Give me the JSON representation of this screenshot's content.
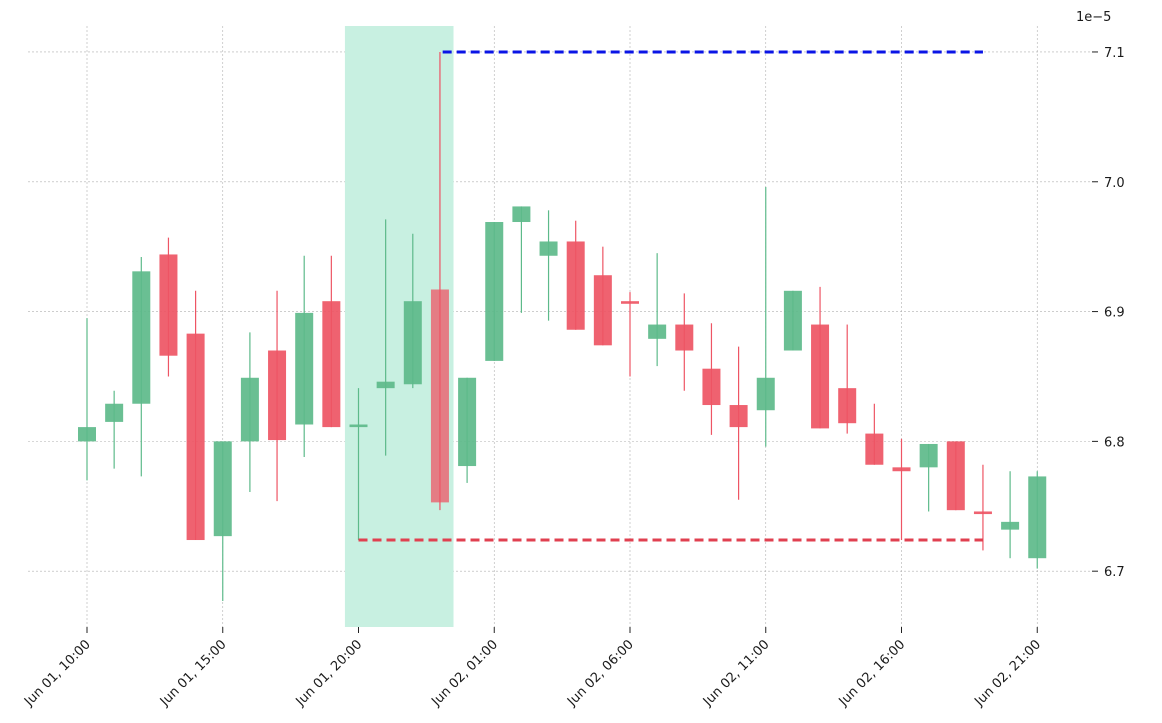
{
  "chart_data": {
    "type": "candlestick",
    "title": "",
    "xlabel": "",
    "ylabel": "",
    "y_scale_label": "1e−5",
    "y_scale_factor": 1e-05,
    "grid": true,
    "y_axis_side": "right",
    "ylim": [
      6.657,
      7.12
    ],
    "x_tick_labels": [
      {
        "index": 0,
        "label": "Jun 01, 10:00"
      },
      {
        "index": 5,
        "label": "Jun 01, 15:00"
      },
      {
        "index": 10,
        "label": "Jun 01, 20:00"
      },
      {
        "index": 15,
        "label": "Jun 02, 01:00"
      },
      {
        "index": 20,
        "label": "Jun 02, 06:00"
      },
      {
        "index": 25,
        "label": "Jun 02, 11:00"
      },
      {
        "index": 30,
        "label": "Jun 02, 16:00"
      },
      {
        "index": 35,
        "label": "Jun 02, 21:00"
      }
    ],
    "y_ticks": [
      "6.7",
      "6.8",
      "6.9",
      "7.0",
      "7.1"
    ],
    "colors": {
      "up": "#5dba8a",
      "down": "#ee5564",
      "highlight": "#c8f0e1",
      "resistance": "#0a14e6",
      "support": "#e04050",
      "grid": "#b0b0b0"
    },
    "highlight_range": [
      9.5,
      13.5
    ],
    "resistance_line": {
      "value": 7.1,
      "x_start": 13.1,
      "x_end": 33.0
    },
    "support_line": {
      "value": 6.724,
      "x_start": 10.0,
      "x_end": 33.0
    },
    "candles": [
      {
        "o": 6.8,
        "h": 6.895,
        "l": 6.77,
        "c": 6.811
      },
      {
        "o": 6.815,
        "h": 6.839,
        "l": 6.779,
        "c": 6.829
      },
      {
        "o": 6.829,
        "h": 6.942,
        "l": 6.773,
        "c": 6.931
      },
      {
        "o": 6.944,
        "h": 6.957,
        "l": 6.85,
        "c": 6.866
      },
      {
        "o": 6.883,
        "h": 6.916,
        "l": 6.724,
        "c": 6.724
      },
      {
        "o": 6.727,
        "h": 6.8,
        "l": 6.677,
        "c": 6.8
      },
      {
        "o": 6.8,
        "h": 6.884,
        "l": 6.761,
        "c": 6.849
      },
      {
        "o": 6.87,
        "h": 6.916,
        "l": 6.754,
        "c": 6.801
      },
      {
        "o": 6.813,
        "h": 6.943,
        "l": 6.788,
        "c": 6.899
      },
      {
        "o": 6.908,
        "h": 6.943,
        "l": 6.811,
        "c": 6.811
      },
      {
        "o": 6.811,
        "h": 6.841,
        "l": 6.724,
        "c": 6.813
      },
      {
        "o": 6.841,
        "h": 6.971,
        "l": 6.789,
        "c": 6.846
      },
      {
        "o": 6.844,
        "h": 6.96,
        "l": 6.841,
        "c": 6.908
      },
      {
        "o": 6.917,
        "h": 7.1,
        "l": 6.747,
        "c": 6.753
      },
      {
        "o": 6.781,
        "h": 6.849,
        "l": 6.768,
        "c": 6.849
      },
      {
        "o": 6.862,
        "h": 6.969,
        "l": 6.862,
        "c": 6.969
      },
      {
        "o": 6.969,
        "h": 6.981,
        "l": 6.899,
        "c": 6.981
      },
      {
        "o": 6.943,
        "h": 6.978,
        "l": 6.893,
        "c": 6.954
      },
      {
        "o": 6.954,
        "h": 6.97,
        "l": 6.886,
        "c": 6.886
      },
      {
        "o": 6.928,
        "h": 6.95,
        "l": 6.874,
        "c": 6.874
      },
      {
        "o": 6.908,
        "h": 6.915,
        "l": 6.85,
        "c": 6.906
      },
      {
        "o": 6.879,
        "h": 6.945,
        "l": 6.858,
        "c": 6.89
      },
      {
        "o": 6.89,
        "h": 6.914,
        "l": 6.839,
        "c": 6.87
      },
      {
        "o": 6.856,
        "h": 6.891,
        "l": 6.805,
        "c": 6.828
      },
      {
        "o": 6.828,
        "h": 6.873,
        "l": 6.755,
        "c": 6.811
      },
      {
        "o": 6.824,
        "h": 6.996,
        "l": 6.796,
        "c": 6.849
      },
      {
        "o": 6.87,
        "h": 6.916,
        "l": 6.87,
        "c": 6.916
      },
      {
        "o": 6.89,
        "h": 6.919,
        "l": 6.81,
        "c": 6.81
      },
      {
        "o": 6.841,
        "h": 6.89,
        "l": 6.806,
        "c": 6.814
      },
      {
        "o": 6.806,
        "h": 6.829,
        "l": 6.782,
        "c": 6.782
      },
      {
        "o": 6.78,
        "h": 6.802,
        "l": 6.724,
        "c": 6.777
      },
      {
        "o": 6.78,
        "h": 6.798,
        "l": 6.746,
        "c": 6.798
      },
      {
        "o": 6.8,
        "h": 6.8,
        "l": 6.747,
        "c": 6.747
      },
      {
        "o": 6.746,
        "h": 6.782,
        "l": 6.716,
        "c": 6.744
      },
      {
        "o": 6.732,
        "h": 6.777,
        "l": 6.71,
        "c": 6.738
      },
      {
        "o": 6.71,
        "h": 6.777,
        "l": 6.702,
        "c": 6.773
      }
    ]
  }
}
